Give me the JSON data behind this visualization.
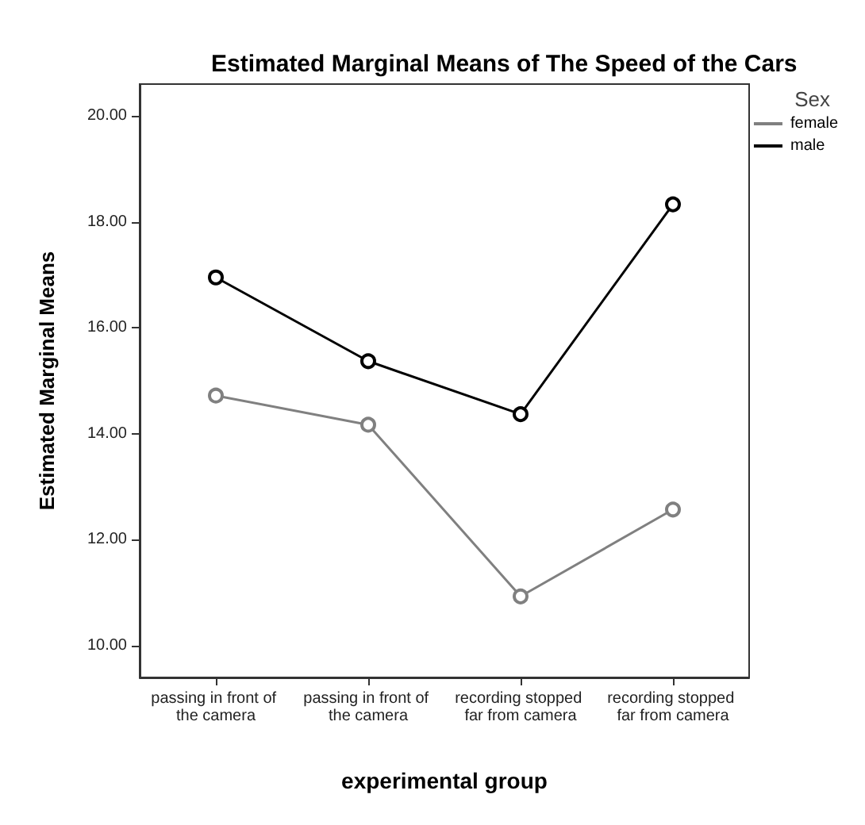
{
  "chart_data": {
    "type": "line",
    "title": "Estimated Marginal Means of The Speed of the Cars",
    "xlabel": "experimental group",
    "ylabel": "Estimated Marginal Means",
    "legend_title": "Sex",
    "categories": [
      "passing in front of the camera",
      "passing in front of the camera",
      "recording stopped far from camera",
      "recording stopped far from camera"
    ],
    "series": [
      {
        "name": "female",
        "color": "#808080",
        "values": [
          14.72,
          14.17,
          10.93,
          12.57
        ]
      },
      {
        "name": "male",
        "color": "#000000",
        "values": [
          16.95,
          15.37,
          14.37,
          18.33
        ]
      }
    ],
    "ylim": [
      9.4,
      20.6
    ],
    "yticks": [
      {
        "value": 10,
        "label": "10.00"
      },
      {
        "value": 12,
        "label": "12.00"
      },
      {
        "value": 14,
        "label": "14.00"
      },
      {
        "value": 16,
        "label": "16.00"
      },
      {
        "value": 18,
        "label": "18.00"
      },
      {
        "value": 20,
        "label": "20.00"
      }
    ],
    "grid": false,
    "legend": "top right",
    "marker": "circle",
    "line_style": "solid"
  }
}
